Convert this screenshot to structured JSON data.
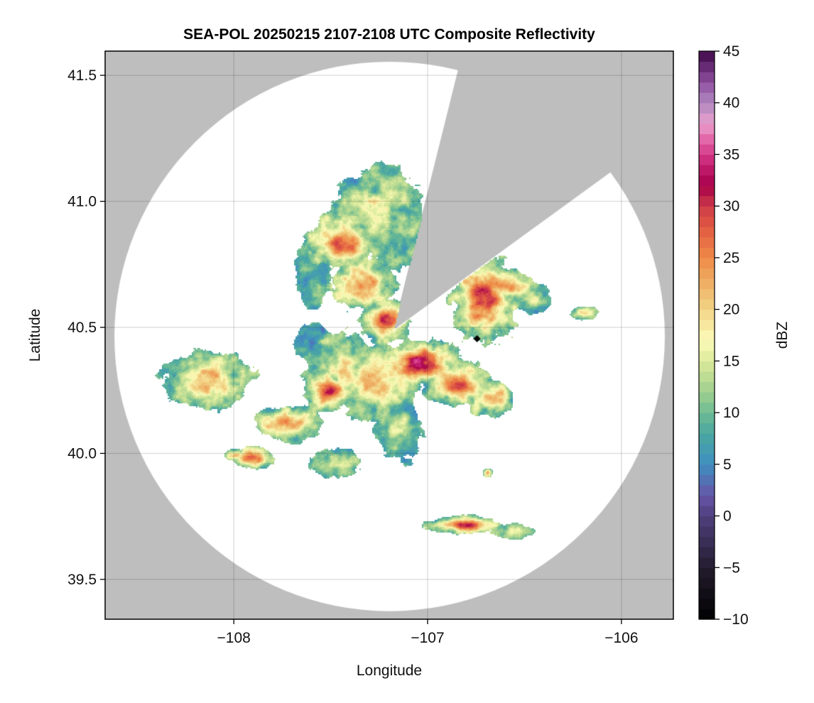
{
  "chart_data": {
    "type": "heatmap",
    "title": "SEA-POL 20250215 2107-2108 UTC Composite Reflectivity",
    "xlabel": "Longitude",
    "ylabel": "Latitude",
    "xlim": [
      -108.664,
      -105.732
    ],
    "ylim": [
      39.342,
      41.596
    ],
    "xticks": [
      -108,
      -107,
      -106
    ],
    "xtick_labels": [
      "−108",
      "−107",
      "−106"
    ],
    "yticks": [
      39.5,
      40.0,
      40.5,
      41.0,
      41.5
    ],
    "ytick_labels": [
      "39.5",
      "40.0",
      "40.5",
      "41.0",
      "41.5"
    ],
    "grid": true,
    "colorbar": {
      "label": "dBZ",
      "range": [
        -10,
        45
      ],
      "bins": 55,
      "ticks": [
        -10,
        -5,
        0,
        5,
        10,
        15,
        20,
        25,
        30,
        35,
        40,
        45
      ],
      "tick_labels": [
        "−10",
        "−5",
        "0",
        "5",
        "10",
        "15",
        "20",
        "25",
        "30",
        "35",
        "40",
        "45"
      ],
      "colormap_stops": [
        [
          -10,
          "#000000"
        ],
        [
          -5,
          "#231c2e"
        ],
        [
          0,
          "#4f3f7d"
        ],
        [
          2,
          "#6555a8"
        ],
        [
          5,
          "#3f8fc0"
        ],
        [
          8,
          "#4aa7a0"
        ],
        [
          10,
          "#6dbb94"
        ],
        [
          12,
          "#9fcf8e"
        ],
        [
          15,
          "#dbe99a"
        ],
        [
          17,
          "#fbfbb8"
        ],
        [
          20,
          "#f2d487"
        ],
        [
          23,
          "#eea95f"
        ],
        [
          25,
          "#ef8a47"
        ],
        [
          28,
          "#e05a43"
        ],
        [
          30,
          "#cc3b48"
        ],
        [
          32,
          "#a6004a"
        ],
        [
          34,
          "#c52070"
        ],
        [
          36,
          "#e0559e"
        ],
        [
          38,
          "#e9a0cd"
        ],
        [
          40,
          "#b088c0"
        ],
        [
          42,
          "#8e4f9e"
        ],
        [
          44,
          "#5a1e66"
        ],
        [
          45,
          "#3d0a45"
        ]
      ]
    },
    "radar": {
      "coverage_center": [
        -107.196,
        40.464
      ],
      "coverage_radius_deg": [
        1.42,
        1.09
      ],
      "beam_origin": [
        -107.178,
        40.489
      ],
      "blocked_sector_azimuth_deg": [
        14,
        54
      ],
      "no_data_color": "#bebebe",
      "marker": [
        -106.745,
        40.455
      ]
    },
    "echo_cells": [
      {
        "lon": -107.446,
        "lat": 40.841,
        "rlon": 0.147,
        "rlat": 0.085,
        "peak_dbz": 27
      },
      {
        "lon": -107.336,
        "lat": 40.672,
        "rlon": 0.128,
        "rlat": 0.085,
        "peak_dbz": 26
      },
      {
        "lon": -107.225,
        "lat": 40.531,
        "rlon": 0.11,
        "rlat": 0.07,
        "peak_dbz": 28
      },
      {
        "lon": -107.262,
        "lat": 40.954,
        "rlon": 0.183,
        "rlat": 0.141,
        "peak_dbz": 15
      },
      {
        "lon": -107.152,
        "lat": 40.869,
        "rlon": 0.092,
        "rlat": 0.113,
        "peak_dbz": 12
      },
      {
        "lon": -107.042,
        "lat": 40.362,
        "rlon": 0.165,
        "rlat": 0.07,
        "peak_dbz": 33
      },
      {
        "lon": -106.858,
        "lat": 40.278,
        "rlon": 0.147,
        "rlat": 0.07,
        "peak_dbz": 26
      },
      {
        "lon": -106.675,
        "lat": 40.221,
        "rlon": 0.092,
        "rlat": 0.056,
        "peak_dbz": 25
      },
      {
        "lon": -107.262,
        "lat": 40.278,
        "rlon": 0.183,
        "rlat": 0.113,
        "peak_dbz": 21
      },
      {
        "lon": -107.519,
        "lat": 40.25,
        "rlon": 0.092,
        "rlat": 0.07,
        "peak_dbz": 29
      },
      {
        "lon": -107.446,
        "lat": 40.334,
        "rlon": 0.147,
        "rlat": 0.113,
        "peak_dbz": 18
      },
      {
        "lon": -107.152,
        "lat": 40.109,
        "rlon": 0.092,
        "rlat": 0.113,
        "peak_dbz": 13
      },
      {
        "lon": -106.712,
        "lat": 40.616,
        "rlon": 0.128,
        "rlat": 0.141,
        "peak_dbz": 31
      },
      {
        "lon": -106.638,
        "lat": 40.672,
        "rlon": 0.147,
        "rlat": 0.056,
        "peak_dbz": 24
      },
      {
        "lon": -106.455,
        "lat": 40.616,
        "rlon": 0.073,
        "rlat": 0.042,
        "peak_dbz": 14
      },
      {
        "lon": -108.143,
        "lat": 40.292,
        "rlon": 0.183,
        "rlat": 0.085,
        "peak_dbz": 23
      },
      {
        "lon": -107.721,
        "lat": 40.123,
        "rlon": 0.147,
        "rlat": 0.056,
        "peak_dbz": 24
      },
      {
        "lon": -107.904,
        "lat": 39.982,
        "rlon": 0.092,
        "rlat": 0.034,
        "peak_dbz": 29
      },
      {
        "lon": -107.996,
        "lat": 39.996,
        "rlon": 0.04,
        "rlat": 0.02,
        "peak_dbz": 24
      },
      {
        "lon": -107.482,
        "lat": 39.968,
        "rlon": 0.11,
        "rlat": 0.042,
        "peak_dbz": 14
      },
      {
        "lon": -106.822,
        "lat": 39.72,
        "rlon": 0.147,
        "rlat": 0.028,
        "peak_dbz": 31
      },
      {
        "lon": -106.565,
        "lat": 39.692,
        "rlon": 0.092,
        "rlat": 0.023,
        "peak_dbz": 15
      },
      {
        "lon": -106.198,
        "lat": 40.559,
        "rlon": 0.055,
        "rlat": 0.023,
        "peak_dbz": 19
      },
      {
        "lon": -106.693,
        "lat": 39.926,
        "rlon": 0.02,
        "rlat": 0.015,
        "peak_dbz": 24
      },
      {
        "lon": -107.592,
        "lat": 40.728,
        "rlon": 0.073,
        "rlat": 0.113,
        "peak_dbz": 8
      },
      {
        "lon": -107.592,
        "lat": 40.447,
        "rlon": 0.073,
        "rlat": 0.056,
        "peak_dbz": 7
      }
    ]
  }
}
